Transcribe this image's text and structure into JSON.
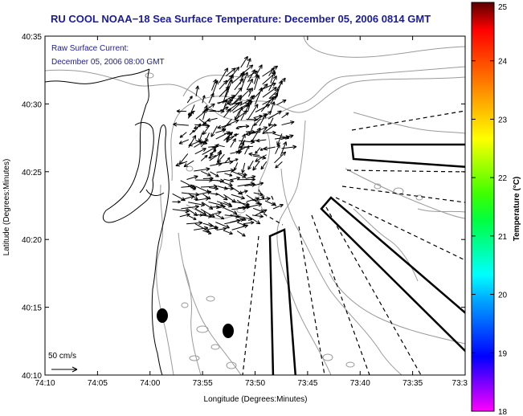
{
  "title": "RU COOL  NOAA−18  Sea Surface Temperature:  December 05, 2006 0814 GMT",
  "legend": {
    "line1": "Raw Surface Current:",
    "line2": "December 05, 2006 08:00 GMT"
  },
  "scale": {
    "label": "50 cm/s"
  },
  "axes": {
    "xlabel": "Longitude (Degrees:Minutes)",
    "ylabel": "Latitude (Degrees:Minutes)",
    "xticks": [
      "74:10",
      "74:05",
      "74:00",
      "73:55",
      "73:50",
      "73:45",
      "73:40",
      "73:35",
      "73:3"
    ],
    "yticks": [
      "40:35",
      "40:30",
      "40:25",
      "40:20",
      "40:15",
      "40:10"
    ]
  },
  "colorbar": {
    "label": "Temperature (°C)",
    "ticks": [
      "25",
      "24",
      "23",
      "22",
      "21",
      "20",
      "19",
      "18"
    ],
    "range": [
      18,
      25
    ],
    "colors": [
      "#ff00ff",
      "#7f00ff",
      "#0000ff",
      "#0050ff",
      "#00a0ff",
      "#00ffff",
      "#00ff9f",
      "#00ff40",
      "#40ff00",
      "#9fff00",
      "#ffff00",
      "#ffbf00",
      "#ff7f00",
      "#ff3f00",
      "#ff0000",
      "#5a0000"
    ]
  },
  "colors": {
    "title": "#1b1b9a",
    "frame": "#000000",
    "contour": "#9a9a9a",
    "coast": "#000000"
  }
}
